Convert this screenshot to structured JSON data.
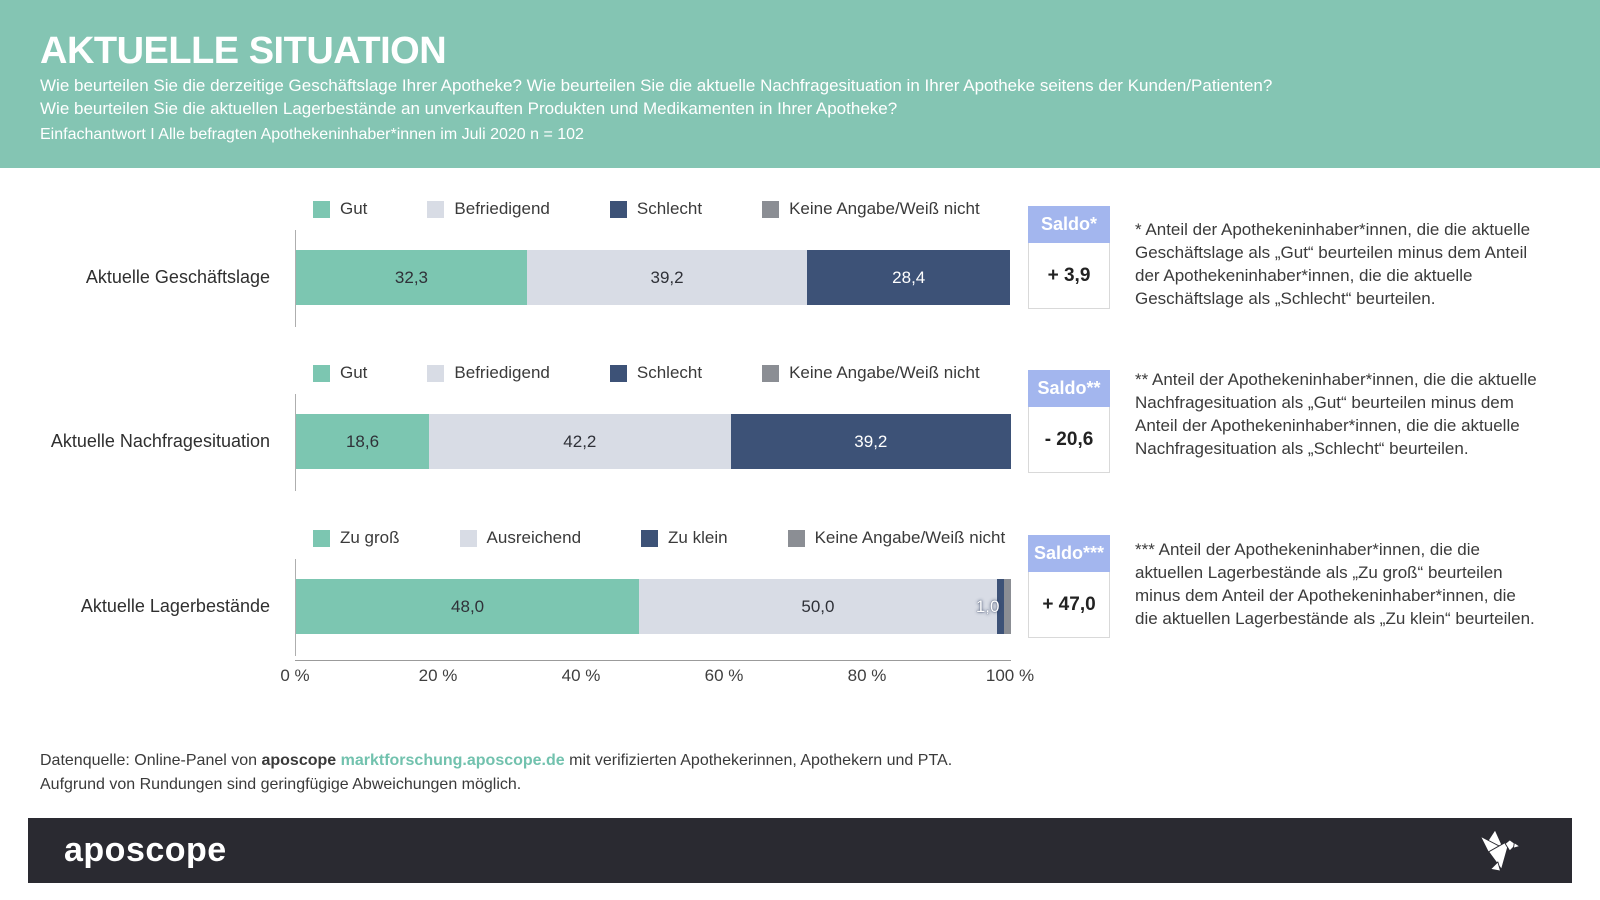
{
  "header": {
    "title": "AKTUELLE SITUATION",
    "subtitle_line1": "Wie beurteilen Sie die derzeitige Geschäftslage Ihrer Apotheke? Wie beurteilen Sie die aktuelle Nachfragesituation in Ihrer Apotheke seitens der Kunden/Patienten?",
    "subtitle_line2": "Wie beurteilen Sie die aktuellen Lagerbestände an unverkauften Produkten und Medikamenten in Ihrer Apotheke?",
    "meta": "Einfachantwort I Alle befragten Apothekeninhaber*innen im Juli 2020 n = 102"
  },
  "colors": {
    "header_teal": "#84c5b3",
    "bar_teal": "#7cc6b1",
    "bar_lightgray": "#d8dce5",
    "bar_navy": "#3d5277",
    "bar_gray": "#8b8e94",
    "saldo_header": "#a3b6ee",
    "footer_black": "#2a2a31",
    "link_teal": "#72c2ae"
  },
  "chart_data": {
    "type": "bar",
    "orientation": "horizontal-stacked",
    "unit": "%",
    "legend_position": "top",
    "x_axis": {
      "range": [
        0,
        100
      ],
      "ticks": [
        "0 %",
        "20 %",
        "40 %",
        "60 %",
        "80 %",
        "100 %"
      ]
    },
    "charts": [
      {
        "label": "Aktuelle Geschäftslage",
        "legend": [
          {
            "label": "Gut",
            "color": "#7cc6b1"
          },
          {
            "label": "Befriedigend",
            "color": "#d8dce5"
          },
          {
            "label": "Schlecht",
            "color": "#3d5277"
          },
          {
            "label": "Keine Angabe/Weiß nicht",
            "color": "#8b8e94"
          }
        ],
        "segments": [
          {
            "label": "Gut",
            "value": 32.3,
            "display": "32,3",
            "color": "#7cc6b1",
            "text": "#2f3138"
          },
          {
            "label": "Befriedigend",
            "value": 39.2,
            "display": "39,2",
            "color": "#d8dce5",
            "text": "#2f3138"
          },
          {
            "label": "Schlecht",
            "value": 28.4,
            "display": "28,4",
            "color": "#3d5277",
            "text": "#ffffff"
          }
        ],
        "saldo": {
          "label": "Saldo*",
          "value": "+ 3,9"
        },
        "note": "* Anteil der Apothekeninhaber*innen, die die aktuelle Geschäftslage als „Gut“ beurteilen minus dem Anteil der Apothekeninhaber*innen, die die aktuelle Geschäftslage als „Schlecht“ beurteilen."
      },
      {
        "label": "Aktuelle Nachfragesituation",
        "legend": [
          {
            "label": "Gut",
            "color": "#7cc6b1"
          },
          {
            "label": "Befriedigend",
            "color": "#d8dce5"
          },
          {
            "label": "Schlecht",
            "color": "#3d5277"
          },
          {
            "label": "Keine Angabe/Weiß nicht",
            "color": "#8b8e94"
          }
        ],
        "segments": [
          {
            "label": "Gut",
            "value": 18.6,
            "display": "18,6",
            "color": "#7cc6b1",
            "text": "#2f3138"
          },
          {
            "label": "Befriedigend",
            "value": 42.2,
            "display": "42,2",
            "color": "#d8dce5",
            "text": "#2f3138"
          },
          {
            "label": "Schlecht",
            "value": 39.2,
            "display": "39,2",
            "color": "#3d5277",
            "text": "#ffffff"
          }
        ],
        "saldo": {
          "label": "Saldo**",
          "value": "- 20,6"
        },
        "note": "** Anteil der Apothekeninhaber*innen, die die aktuelle Nachfragesituation als „Gut“ beurteilen minus dem Anteil der Apothekeninhaber*innen, die die aktuelle Nachfragesituation als „Schlecht“ beurteilen."
      },
      {
        "label": "Aktuelle Lagerbestände",
        "legend": [
          {
            "label": "Zu groß",
            "color": "#7cc6b1"
          },
          {
            "label": "Ausreichend",
            "color": "#d8dce5"
          },
          {
            "label": "Zu klein",
            "color": "#3d5277"
          },
          {
            "label": "Keine Angabe/Weiß nicht",
            "color": "#8b8e94"
          }
        ],
        "segments": [
          {
            "label": "Zu groß",
            "value": 48.0,
            "display": "48,0",
            "color": "#7cc6b1",
            "text": "#2f3138"
          },
          {
            "label": "Ausreichend",
            "value": 50.0,
            "display": "50,0",
            "color": "#d8dce5",
            "text": "#2f3138"
          },
          {
            "label": "Zu klein",
            "value": 1.0,
            "display": "1,0",
            "color": "#3d5277",
            "text": "#ffffff",
            "overflow": true
          },
          {
            "label": "Keine Angabe/Weiß nicht",
            "value": 1.0,
            "display": "",
            "color": "#8b8e94",
            "text": "#ffffff"
          }
        ],
        "saldo": {
          "label": "Saldo***",
          "value": "+ 47,0"
        },
        "note": "*** Anteil der Apothekeninhaber*innen, die die aktuellen Lagerbestände als „Zu groß“ beurteilen minus dem Anteil der Apothekeninhaber*innen, die die aktuellen Lagerbestände als „Zu klein“ beurteilen."
      }
    ]
  },
  "footer": {
    "source": {
      "prefix": "Datenquelle: Online-Panel von ",
      "brand": "aposcope",
      "link": "marktforschung.aposcope.de",
      "suffix": " mit verifizierten Apothekerinnen, Apothekern und PTA."
    },
    "rounding": "Aufgrund von Rundungen sind geringfügige Abweichungen möglich."
  },
  "brandbar": {
    "logo_text": "aposcope",
    "icon": "origami-bird-icon"
  }
}
